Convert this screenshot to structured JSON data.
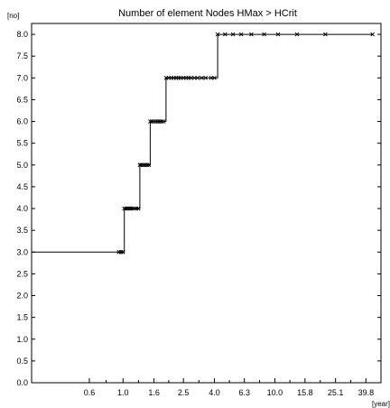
{
  "chart_data": {
    "type": "line",
    "title": "Number of element  Nodes HMax > HCrit",
    "xlabel": "[year]",
    "ylabel": "[no]",
    "x_scale": "log",
    "xlim": [
      0.25,
      50
    ],
    "ylim": [
      0,
      8.25
    ],
    "grid": false,
    "x_tick_labels": [
      "0.6",
      "1.0",
      "1.6",
      "2.5",
      "4.0",
      "6.3",
      "10.0",
      "15.8",
      "25.1",
      "39.8"
    ],
    "y_tick_labels": [
      "0.0",
      "0.5",
      "1.0",
      "1.5",
      "2.0",
      "2.5",
      "3.0",
      "3.5",
      "4.0",
      "4.5",
      "5.0",
      "5.5",
      "6.0",
      "6.5",
      "7.0",
      "7.5",
      "8.0"
    ],
    "series": [
      {
        "type": "step",
        "color": "#000000",
        "x": [
          0.25,
          0.94,
          0.97,
          1.0,
          1.02,
          1.05,
          1.08,
          1.11,
          1.14,
          1.18,
          1.22,
          1.26,
          1.29,
          1.32,
          1.36,
          1.4,
          1.44,
          1.48,
          1.51,
          1.55,
          1.6,
          1.65,
          1.7,
          1.75,
          1.8,
          1.85,
          1.92,
          2.0,
          2.08,
          2.16,
          2.24,
          2.32,
          2.4,
          2.5,
          2.6,
          2.7,
          2.8,
          2.95,
          3.1,
          3.3,
          3.5,
          3.8,
          4.0,
          4.2,
          4.7,
          5.3,
          6.0,
          7.0,
          8.5,
          10.5,
          14.0,
          21.5,
          44.0
        ],
        "y": [
          3,
          3,
          3,
          3,
          4,
          4,
          4,
          4,
          4,
          4,
          4,
          4,
          5,
          5,
          5,
          5,
          5,
          5,
          6,
          6,
          6,
          6,
          6,
          6,
          6,
          6,
          7,
          7,
          7,
          7,
          7,
          7,
          7,
          7,
          7,
          7,
          7,
          7,
          7,
          7,
          7,
          7,
          7,
          8,
          8,
          8,
          8,
          8,
          8,
          8,
          8,
          8,
          8
        ],
        "markers": "x",
        "marker_start_index": 1
      }
    ]
  }
}
